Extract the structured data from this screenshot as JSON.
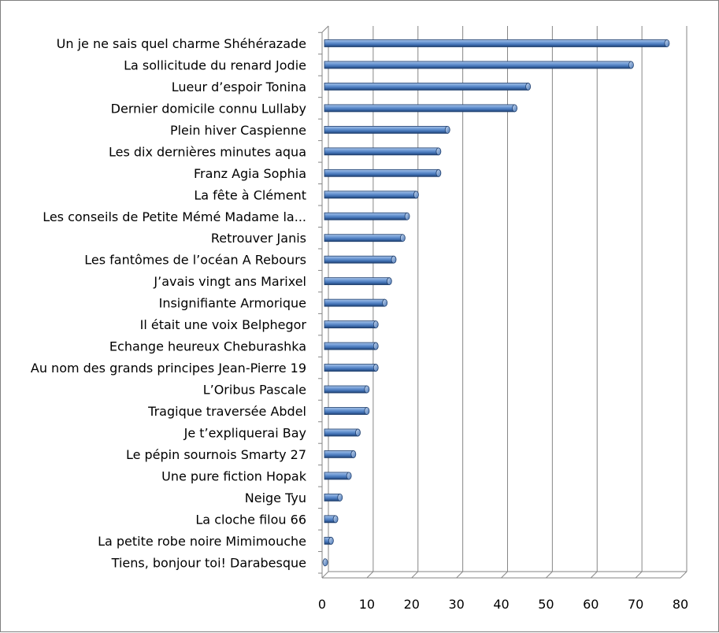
{
  "chart_data": {
    "type": "bar",
    "orientation": "horizontal",
    "style": "3d-cylinder",
    "title": "",
    "xlabel": "",
    "ylabel": "",
    "xlim": [
      0,
      80
    ],
    "xticks": [
      0,
      10,
      20,
      30,
      40,
      50,
      60,
      70,
      80
    ],
    "grid": true,
    "legend": "none",
    "colors": {
      "bar": "#4f81bd",
      "bar_dark": "#1f3f6e",
      "bar_light": "#a9c3e6",
      "grid": "#868686"
    },
    "categories": [
      "Un je ne sais quel charme Shéhérazade",
      "La sollicitude du renard  Jodie",
      "Lueur d’espoir Tonina",
      "Dernier domicile connu Lullaby",
      "Plein hiver Caspienne",
      "Les dix dernières  minutes aqua",
      "Franz Agia Sophia",
      "La fête à Clément",
      "Les conseils de Petite Mémé Madame la...",
      "Retrouver Janis",
      "Les fantômes de l’océan A Rebours",
      "J’avais vingt ans Marixel",
      "Insignifiante Armorique",
      "Il était une voix Belphegor",
      "Echange heureux Cheburashka",
      "Au nom des grands principes Jean-Pierre 19",
      "L’Oribus Pascale",
      "Tragique traversée Abdel",
      "Je t’expliquerai Bay",
      "Le pépin sournois Smarty 27",
      "Une pure fiction Hopak",
      "Neige Tyu",
      "La cloche filou 66",
      "La petite robe noire Mimimouche",
      "Tiens, bonjour toi! Darabesque"
    ],
    "values": [
      77,
      69,
      46,
      43,
      28,
      26,
      26,
      21,
      19,
      18,
      16,
      15,
      14,
      12,
      12,
      12,
      10,
      10,
      8,
      7,
      6,
      4,
      3,
      2,
      0
    ]
  }
}
